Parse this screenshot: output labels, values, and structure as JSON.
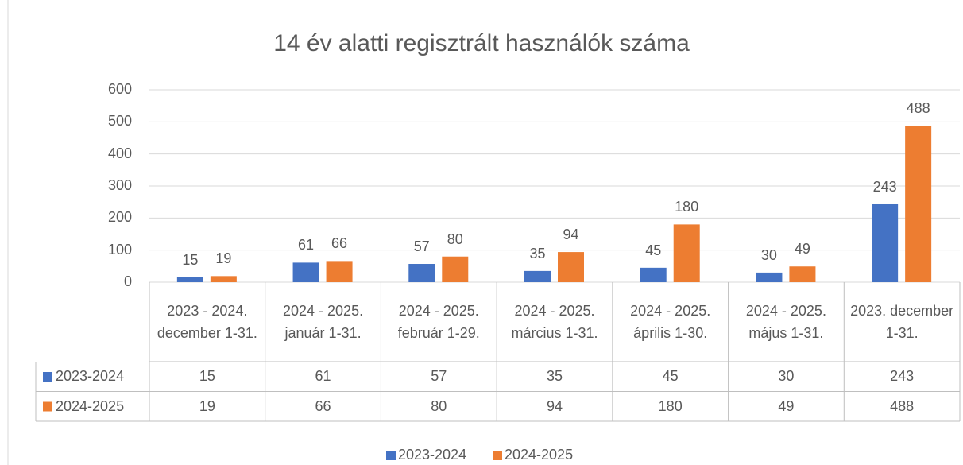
{
  "chart_data": {
    "type": "bar",
    "title": "14 év alatti regisztrált használók száma",
    "categories": [
      "2023 - 2024. december 1-31.",
      "2024 - 2025. január 1-31.",
      "2024 - 2025. február 1-29.",
      "2024 - 2025. március 1-31.",
      "2024 - 2025. április 1-30.",
      "2024 - 2025. május 1-31.",
      "2023. december 1-31."
    ],
    "series": [
      {
        "name": "2023-2024",
        "color": "#4472c4",
        "values": [
          15,
          61,
          57,
          35,
          45,
          30,
          243
        ]
      },
      {
        "name": "2024-2025",
        "color": "#ed7d31",
        "values": [
          19,
          66,
          80,
          94,
          180,
          49,
          488
        ]
      }
    ],
    "ylim": [
      0,
      600
    ],
    "yticks": [
      0,
      100,
      200,
      300,
      400,
      500,
      600
    ],
    "grid": true,
    "legend": "bottom",
    "data_table": true
  }
}
